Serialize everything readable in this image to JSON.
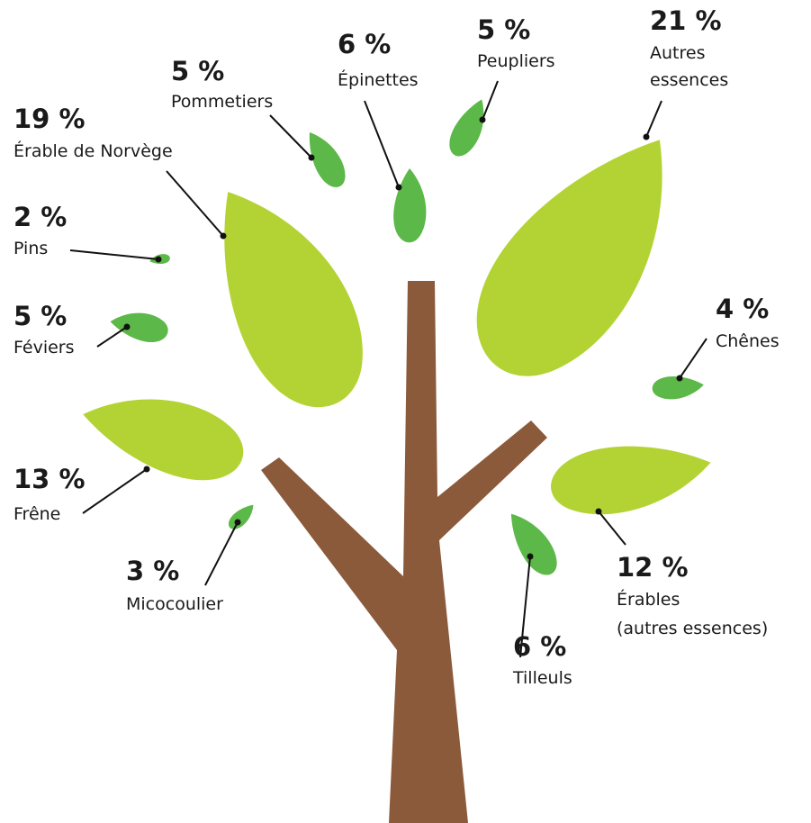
{
  "items": [
    {
      "percent": "19 %",
      "name": [
        "Érable de Norvège"
      ]
    },
    {
      "percent": "2 %",
      "name": [
        "Pins"
      ]
    },
    {
      "percent": "5 %",
      "name": [
        "Féviers"
      ]
    },
    {
      "percent": "13 %",
      "name": [
        "Frêne"
      ]
    },
    {
      "percent": "3 %",
      "name": [
        "Micocoulier"
      ]
    },
    {
      "percent": "5 %",
      "name": [
        "Pommetiers"
      ]
    },
    {
      "percent": "6 %",
      "name": [
        "Épinettes"
      ]
    },
    {
      "percent": "5 %",
      "name": [
        "Peupliers"
      ]
    },
    {
      "percent": "21 %",
      "name": [
        "Autres",
        "essences"
      ]
    },
    {
      "percent": "4 %",
      "name": [
        "Chênes"
      ]
    },
    {
      "percent": "12 %",
      "name": [
        "Érables",
        "(autres essences)"
      ]
    },
    {
      "percent": "6 %",
      "name": [
        "Tilleuls"
      ]
    }
  ]
}
